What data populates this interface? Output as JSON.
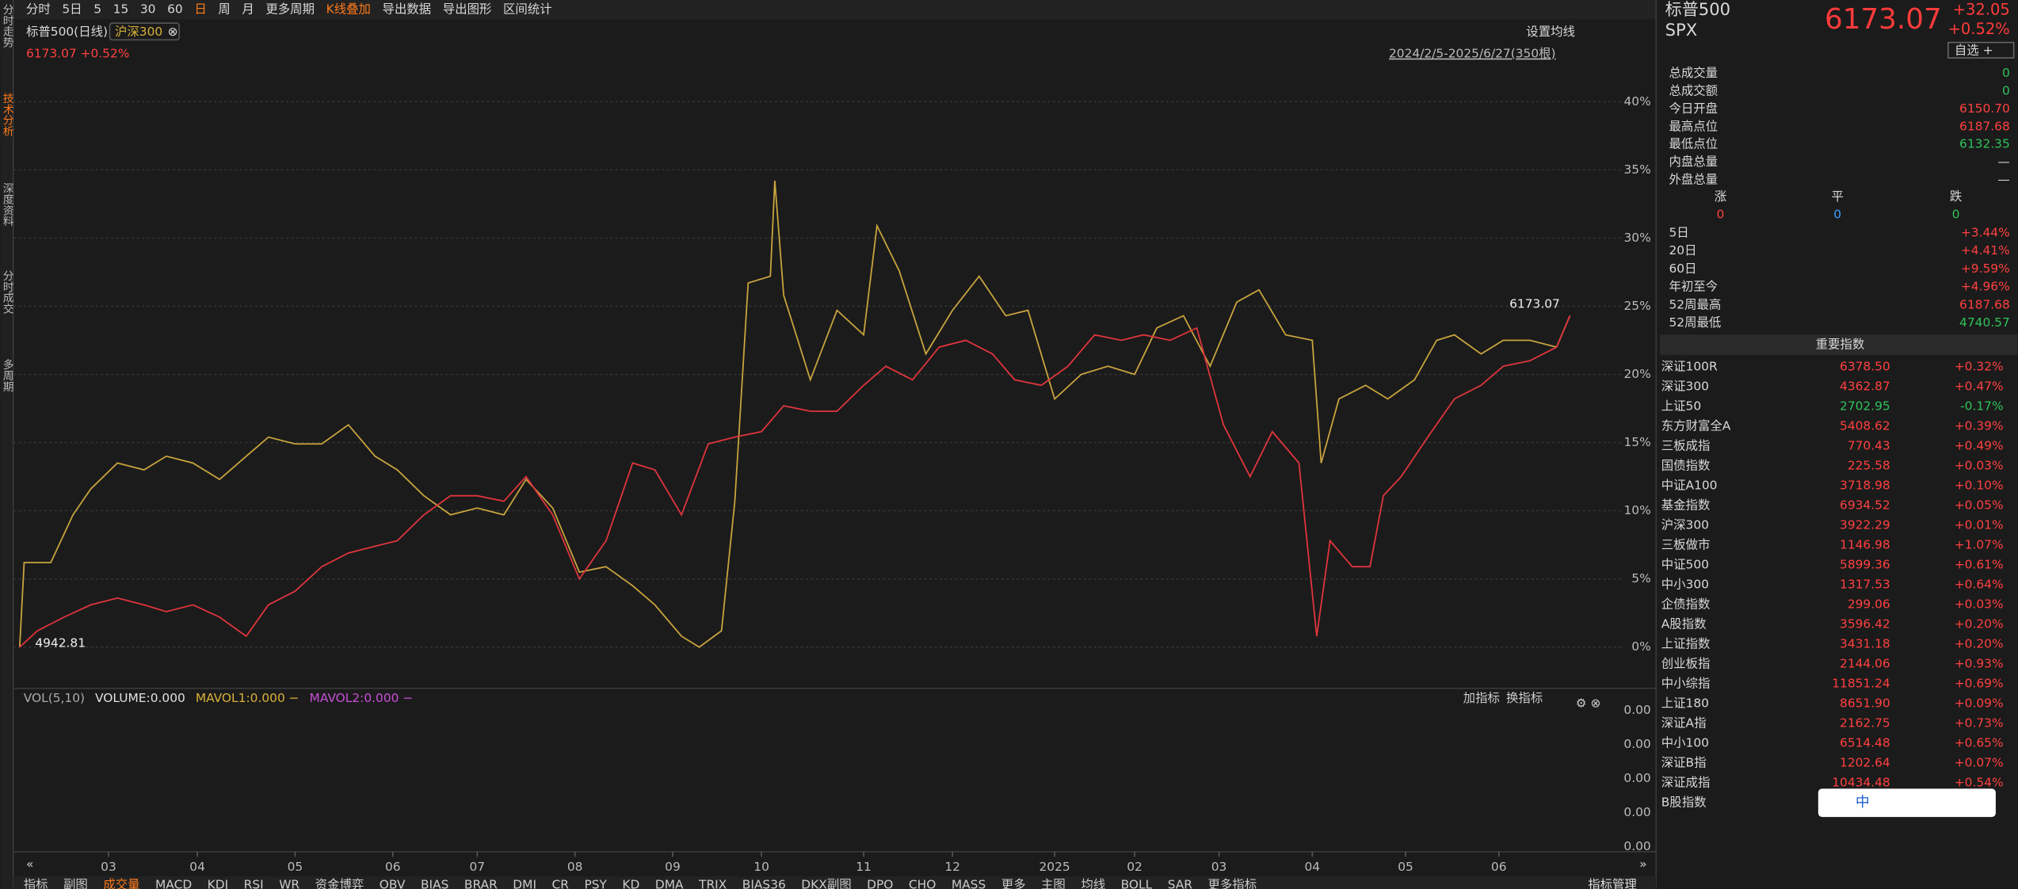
{
  "toolbar": {
    "items": [
      {
        "label": "分时"
      },
      {
        "label": "5日"
      },
      {
        "label": "5"
      },
      {
        "label": "15"
      },
      {
        "label": "30"
      },
      {
        "label": "60"
      },
      {
        "label": "日",
        "active": true
      },
      {
        "label": "周"
      },
      {
        "label": "月"
      },
      {
        "label": "更多周期"
      },
      {
        "label": "K线叠加",
        "active": true
      },
      {
        "label": "导出数据"
      },
      {
        "label": "导出图形"
      },
      {
        "label": "区间统计"
      }
    ]
  },
  "sidebar": [
    {
      "label": "分时走势"
    },
    {
      "label": "技术分析",
      "active": true
    },
    {
      "label": "深度资料"
    },
    {
      "label": "分时成交"
    },
    {
      "label": "多周期"
    }
  ],
  "chart_data": {
    "type": "line",
    "subtitle": "6173.07 +0.52%",
    "settings_label": "设置均线",
    "range_label": "2024/2/5-2025/6/27(350根)",
    "series": [
      {
        "name": "标普500(日线)",
        "color": "#e0353d",
        "x": [
          0,
          4,
          10,
          16,
          22,
          28,
          33,
          39,
          45,
          51,
          56,
          62,
          68,
          74,
          80,
          85,
          91,
          97,
          103,
          109,
          114,
          120,
          126,
          132,
          138,
          143,
          149,
          155,
          161,
          167,
          172,
          178,
          184,
          190,
          195,
          201,
          207,
          213,
          219,
          224,
          230,
          236,
          242,
          248,
          253,
          259,
          265,
          271,
          277,
          282,
          288,
          292,
          295,
          300,
          304,
          307,
          311,
          317,
          323,
          329,
          334,
          340,
          346,
          349
        ],
        "values": [
          0,
          1.2,
          2.2,
          3.1,
          3.6,
          3.1,
          2.6,
          3.1,
          2.2,
          0.8,
          3.1,
          4.1,
          5.9,
          6.9,
          7.4,
          7.8,
          9.7,
          11.1,
          11.1,
          10.7,
          12.5,
          9.7,
          5.0,
          7.8,
          13.5,
          13.0,
          9.7,
          14.9,
          15.4,
          15.8,
          17.7,
          17.3,
          17.3,
          19.2,
          20.6,
          19.6,
          22.0,
          22.5,
          21.5,
          19.6,
          19.2,
          20.6,
          22.9,
          22.5,
          22.9,
          22.5,
          23.4,
          16.3,
          12.5,
          15.8,
          13.5,
          0.8,
          7.8,
          5.9,
          5.9,
          11.1,
          12.5,
          15.4,
          18.2,
          19.2,
          20.6,
          21.0,
          22.0,
          24.3
        ]
      },
      {
        "name": "沪深300",
        "color": "#c9a43e",
        "x": [
          0,
          1,
          7,
          12,
          16,
          22,
          28,
          33,
          39,
          45,
          51,
          56,
          62,
          68,
          74,
          80,
          85,
          91,
          97,
          103,
          109,
          114,
          120,
          126,
          132,
          138,
          143,
          149,
          153,
          158,
          161,
          164,
          169,
          170,
          172,
          178,
          184,
          190,
          193,
          198,
          204,
          210,
          216,
          222,
          227,
          233,
          239,
          245,
          251,
          256,
          262,
          268,
          274,
          279,
          285,
          291,
          293,
          297,
          303,
          308,
          314,
          319,
          323,
          329,
          334,
          340,
          346,
          349
        ],
        "values": [
          0,
          6.2,
          6.2,
          9.7,
          11.6,
          13.5,
          13.0,
          14.0,
          13.5,
          12.3,
          14.0,
          15.4,
          14.9,
          14.9,
          16.3,
          14.0,
          13.0,
          11.1,
          9.7,
          10.2,
          9.7,
          12.3,
          10.2,
          5.5,
          5.9,
          4.5,
          3.1,
          0.8,
          0,
          1.2,
          10.7,
          26.7,
          27.2,
          34.2,
          25.8,
          19.6,
          24.7,
          22.9,
          30.9,
          27.6,
          21.5,
          24.7,
          27.2,
          24.3,
          24.7,
          18.2,
          20.0,
          20.6,
          20.0,
          23.4,
          24.3,
          20.6,
          25.3,
          26.2,
          22.9,
          22.5,
          13.5,
          18.2,
          19.2,
          18.2,
          19.6,
          22.5,
          22.9,
          21.5,
          22.5,
          22.5,
          22.0,
          24.3
        ]
      }
    ],
    "annotations": [
      {
        "text": "6173.07"
      },
      {
        "text": "4942.81"
      }
    ],
    "xlim": [
      0,
      349
    ],
    "xticks": [
      {
        "value": 20,
        "label": "03"
      },
      {
        "value": 40,
        "label": "04"
      },
      {
        "value": 62,
        "label": "05"
      },
      {
        "value": 84,
        "label": "06"
      },
      {
        "value": 103,
        "label": "07"
      },
      {
        "value": 125,
        "label": "08"
      },
      {
        "value": 147,
        "label": "09"
      },
      {
        "value": 167,
        "label": "10"
      },
      {
        "value": 190,
        "label": "11"
      },
      {
        "value": 210,
        "label": "12"
      },
      {
        "value": 233,
        "label": "2025"
      },
      {
        "value": 251,
        "label": "02"
      },
      {
        "value": 270,
        "label": "03"
      },
      {
        "value": 291,
        "label": "04"
      },
      {
        "value": 312,
        "label": "05"
      },
      {
        "value": 333,
        "label": "06"
      }
    ],
    "ylim": [
      -3,
      46
    ],
    "yticks": [
      {
        "value": 0,
        "label": "0%"
      },
      {
        "value": 5,
        "label": "5%"
      },
      {
        "value": 10,
        "label": "10%"
      },
      {
        "value": 15,
        "label": "15%"
      },
      {
        "value": 20,
        "label": "20%"
      },
      {
        "value": 25,
        "label": "25%"
      },
      {
        "value": 30,
        "label": "30%"
      },
      {
        "value": 35,
        "label": "35%"
      },
      {
        "value": 40,
        "label": "40%"
      }
    ],
    "grid": true
  },
  "volume_panel": {
    "items": [
      {
        "label": "VOL(5,10)",
        "color": "#aaaaaa"
      },
      {
        "label": "VOLUME:0.000",
        "color": "#e0e0e0"
      },
      {
        "label": "MAVOL1:0.000 −",
        "color": "#d8b13a"
      },
      {
        "label": "MAVOL2:0.000 −",
        "color": "#c84fd8"
      }
    ],
    "buttons": [
      "加指标",
      "换指标"
    ],
    "tick_labels": [
      "0.00",
      "0.00",
      "0.00",
      "0.00",
      "0.00"
    ]
  },
  "bottom_tabs": {
    "items": [
      {
        "label": "指标"
      },
      {
        "label": "副图"
      },
      {
        "label": "成交量",
        "active": true
      },
      {
        "label": "MACD"
      },
      {
        "label": "KDJ"
      },
      {
        "label": "RSI"
      },
      {
        "label": "WR"
      },
      {
        "label": "资金博弈"
      },
      {
        "label": "OBV"
      },
      {
        "label": "BIAS"
      },
      {
        "label": "BRAR"
      },
      {
        "label": "DMI"
      },
      {
        "label": "CR"
      },
      {
        "label": "PSY"
      },
      {
        "label": "KD"
      },
      {
        "label": "DMA"
      },
      {
        "label": "TRIX"
      },
      {
        "label": "BIAS36"
      },
      {
        "label": "DKX副图"
      },
      {
        "label": "DPO"
      },
      {
        "label": "CHO"
      },
      {
        "label": "MASS"
      },
      {
        "label": "更多"
      },
      {
        "label": "主图"
      },
      {
        "label": "均线"
      },
      {
        "label": "BOLL"
      },
      {
        "label": "SAR"
      },
      {
        "label": "更多指标"
      }
    ],
    "manage": "指标管理"
  },
  "quote": {
    "name": "标普500",
    "code": "SPX",
    "price": "6173.07",
    "change": "+32.05",
    "change_pct": "+0.52%",
    "watch": "自选 +",
    "stats": [
      {
        "label": "总成交量",
        "value": "0",
        "color": "#2fc25b"
      },
      {
        "label": "总成交额",
        "value": "0",
        "color": "#2fc25b"
      },
      {
        "label": "今日开盘",
        "value": "6150.70",
        "color": "#ff4040"
      },
      {
        "label": "最高点位",
        "value": "6187.68",
        "color": "#ff4040"
      },
      {
        "label": "最低点位",
        "value": "6132.35",
        "color": "#2fc25b"
      },
      {
        "label": "内盘总量",
        "value": "—",
        "color": "#d8d8d8"
      },
      {
        "label": "外盘总量",
        "value": "—",
        "color": "#d8d8d8"
      }
    ],
    "breadth": [
      {
        "label": "涨",
        "value": "0",
        "color": "#ff4040"
      },
      {
        "label": "平",
        "value": "0",
        "color": "#3aa0ff"
      },
      {
        "label": "跌",
        "value": "0",
        "color": "#2fc25b"
      }
    ],
    "periods": [
      {
        "label": "5日",
        "value": "+3.44%"
      },
      {
        "label": "20日",
        "value": "+4.41%"
      },
      {
        "label": "60日",
        "value": "+9.59%"
      },
      {
        "label": "年初至今",
        "value": "+4.96%"
      },
      {
        "label": "52周最高",
        "value": "6187.68"
      },
      {
        "label": "52周最低",
        "value": "4740.57",
        "color": "#2fc25b"
      }
    ]
  },
  "indices": {
    "title": "重要指数",
    "rows": [
      {
        "name": "深证100R",
        "price": "6378.50",
        "change": "+0.32%"
      },
      {
        "name": "深证300",
        "price": "4362.87",
        "change": "+0.47%"
      },
      {
        "name": "上证50",
        "price": "2702.95",
        "change": "-0.17%"
      },
      {
        "name": "东方财富全A",
        "price": "5408.62",
        "change": "+0.39%"
      },
      {
        "name": "三板成指",
        "price": "770.43",
        "change": "+0.49%"
      },
      {
        "name": "国债指数",
        "price": "225.58",
        "change": "+0.03%"
      },
      {
        "name": "中证A100",
        "price": "3718.98",
        "change": "+0.10%"
      },
      {
        "name": "基金指数",
        "price": "6934.52",
        "change": "+0.05%"
      },
      {
        "name": "沪深300",
        "price": "3922.29",
        "change": "+0.01%"
      },
      {
        "name": "三板做市",
        "price": "1146.98",
        "change": "+1.07%"
      },
      {
        "name": "中证500",
        "price": "5899.36",
        "change": "+0.61%"
      },
      {
        "name": "中小300",
        "price": "1317.53",
        "change": "+0.64%"
      },
      {
        "name": "企债指数",
        "price": "299.06",
        "change": "+0.03%"
      },
      {
        "name": "A股指数",
        "price": "3596.42",
        "change": "+0.20%"
      },
      {
        "name": "上证指数",
        "price": "3431.18",
        "change": "+0.20%"
      },
      {
        "name": "创业板指",
        "price": "2144.06",
        "change": "+0.93%"
      },
      {
        "name": "中小综指",
        "price": "11851.24",
        "change": "+0.69%"
      },
      {
        "name": "上证180",
        "price": "8651.90",
        "change": "+0.09%"
      },
      {
        "name": "深证A指",
        "price": "2162.75",
        "change": "+0.73%"
      },
      {
        "name": "中小100",
        "price": "6514.48",
        "change": "+0.65%"
      },
      {
        "name": "深证B指",
        "price": "1202.64",
        "change": "+0.07%"
      },
      {
        "name": "深证成指",
        "price": "10434.48",
        "change": "+0.54%"
      },
      {
        "name": "B股指数"
      }
    ]
  },
  "ime": "中"
}
